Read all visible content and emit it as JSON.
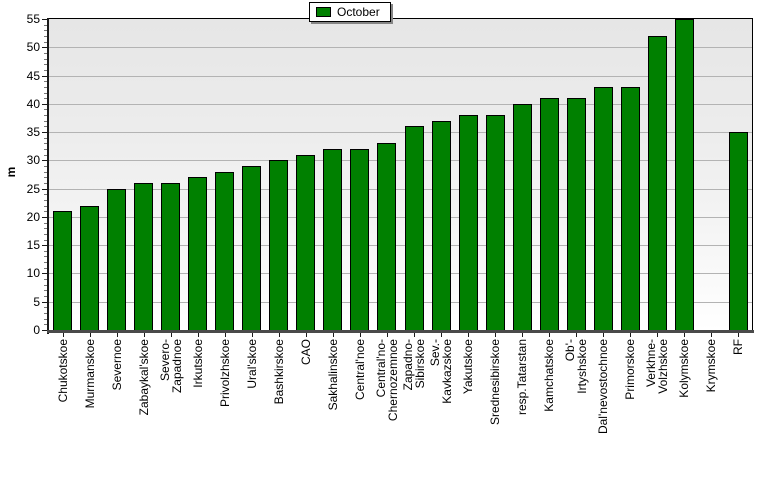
{
  "chart_data": {
    "type": "bar",
    "title": "",
    "xlabel": "",
    "ylabel": "m",
    "ylim": [
      0,
      55
    ],
    "ytick_step": 5,
    "grid": true,
    "legend_position": "top-center",
    "bar_color": "#008000",
    "bar_border_color": "#000000",
    "gridline_color": "#b3b3b3",
    "plot_background": [
      "#e6e6e6",
      "#ffffff"
    ],
    "categories": [
      "Chukotskoe",
      "Murmanskoe",
      "Severnoe",
      "Zabaykal'skoe",
      "Severo-\nZapadnoe",
      "Irkutskoe",
      "Privolzhskoe",
      "Ural'skoe",
      "Bashkirskoe",
      "CAO",
      "Sakhalinskoe",
      "Central'noe",
      "Central'no-\nChernozemnoe",
      "Zapadno-\nSibirskoe",
      "Sev.-\nKavkazskoe",
      "Yakutskoe",
      "Srednesibirskoe",
      "resp.Tatarstan",
      "Kamchatskoe",
      "Ob'-\nIrtyshskoe",
      "Dal'nevostochnoe",
      "Primorskoe",
      "Verkhne-\nVolzhskoe",
      "Kolymskoe",
      "Krymskoe",
      "RF"
    ],
    "series": [
      {
        "name": "October",
        "color": "#008000",
        "values": [
          21,
          22,
          25,
          26,
          26,
          27,
          28,
          29,
          30,
          31,
          32,
          32,
          33,
          36,
          37,
          38,
          38,
          40,
          41,
          41,
          43,
          43,
          52,
          55,
          0,
          35
        ]
      }
    ]
  }
}
